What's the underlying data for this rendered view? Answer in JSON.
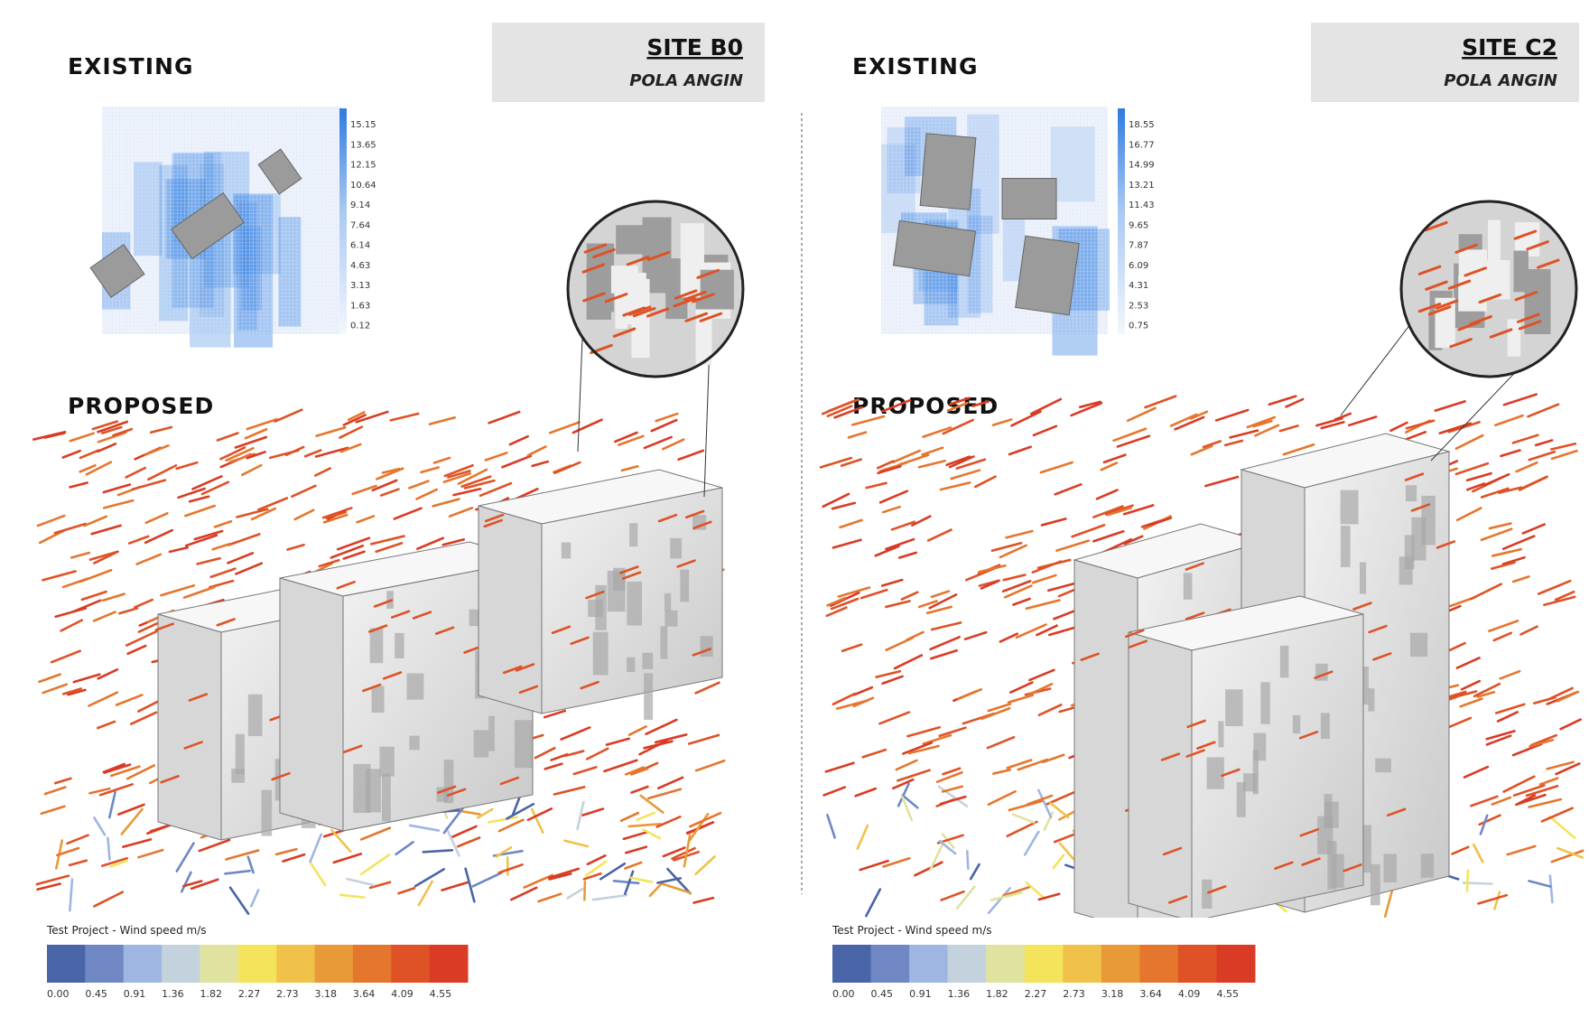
{
  "panels": [
    {
      "existing_label": "EXISTING",
      "site": "SITE B0",
      "subtitle": "POLA ANGIN",
      "proposed_label": "PROPOSED",
      "heatmap_legend": [
        "15.15",
        "13.65",
        "12.15",
        "10.64",
        "9.14",
        "7.64",
        "6.14",
        "4.63",
        "3.13",
        "1.63",
        "0.12"
      ],
      "legend_title": "Test Project - Wind speed m/s",
      "legend_labels": [
        "0.00",
        "0.45",
        "0.91",
        "1.36",
        "1.82",
        "2.27",
        "2.73",
        "3.18",
        "3.64",
        "4.09",
        "4.55"
      ]
    },
    {
      "existing_label": "EXISTING",
      "site": "SITE C2",
      "subtitle": "POLA ANGIN",
      "proposed_label": "PROPOSED",
      "heatmap_legend": [
        "18.55",
        "16.77",
        "14.99",
        "13.21",
        "11.43",
        "9.65",
        "7.87",
        "6.09",
        "4.31",
        "2.53",
        "0.75"
      ],
      "legend_title": "Test Project - Wind speed m/s",
      "legend_labels": [
        "0.00",
        "0.45",
        "0.91",
        "1.36",
        "1.82",
        "2.27",
        "2.73",
        "3.18",
        "3.64",
        "4.09",
        "4.55"
      ]
    }
  ],
  "legend_colors": [
    "#4a64a8",
    "#6f88c4",
    "#9fb6e2",
    "#c3d2dc",
    "#e0e2a0",
    "#f4e45c",
    "#f1c24a",
    "#e89a38",
    "#e5762e",
    "#de5226",
    "#d93b24"
  ]
}
